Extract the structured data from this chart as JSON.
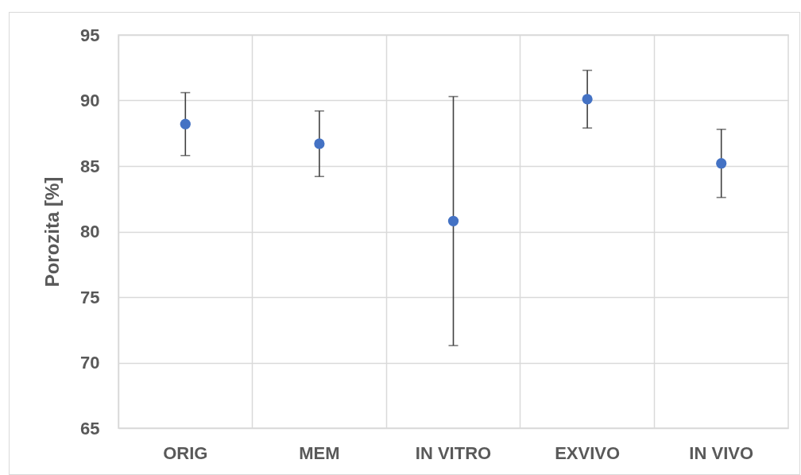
{
  "chart_data": {
    "type": "scatter",
    "ylabel": "Porozita [%]",
    "categories": [
      "ORIG",
      "MEM",
      "IN VITRO",
      "EXVIVO",
      "IN VIVO"
    ],
    "values": [
      88.2,
      86.7,
      80.8,
      90.1,
      85.2
    ],
    "errors": [
      2.4,
      2.5,
      9.5,
      2.2,
      2.6
    ],
    "color": "#4472c4",
    "marker": "circle",
    "ylim": [
      65,
      95
    ],
    "yticks": [
      65,
      70,
      75,
      80,
      85,
      90,
      95
    ],
    "grid": true
  }
}
